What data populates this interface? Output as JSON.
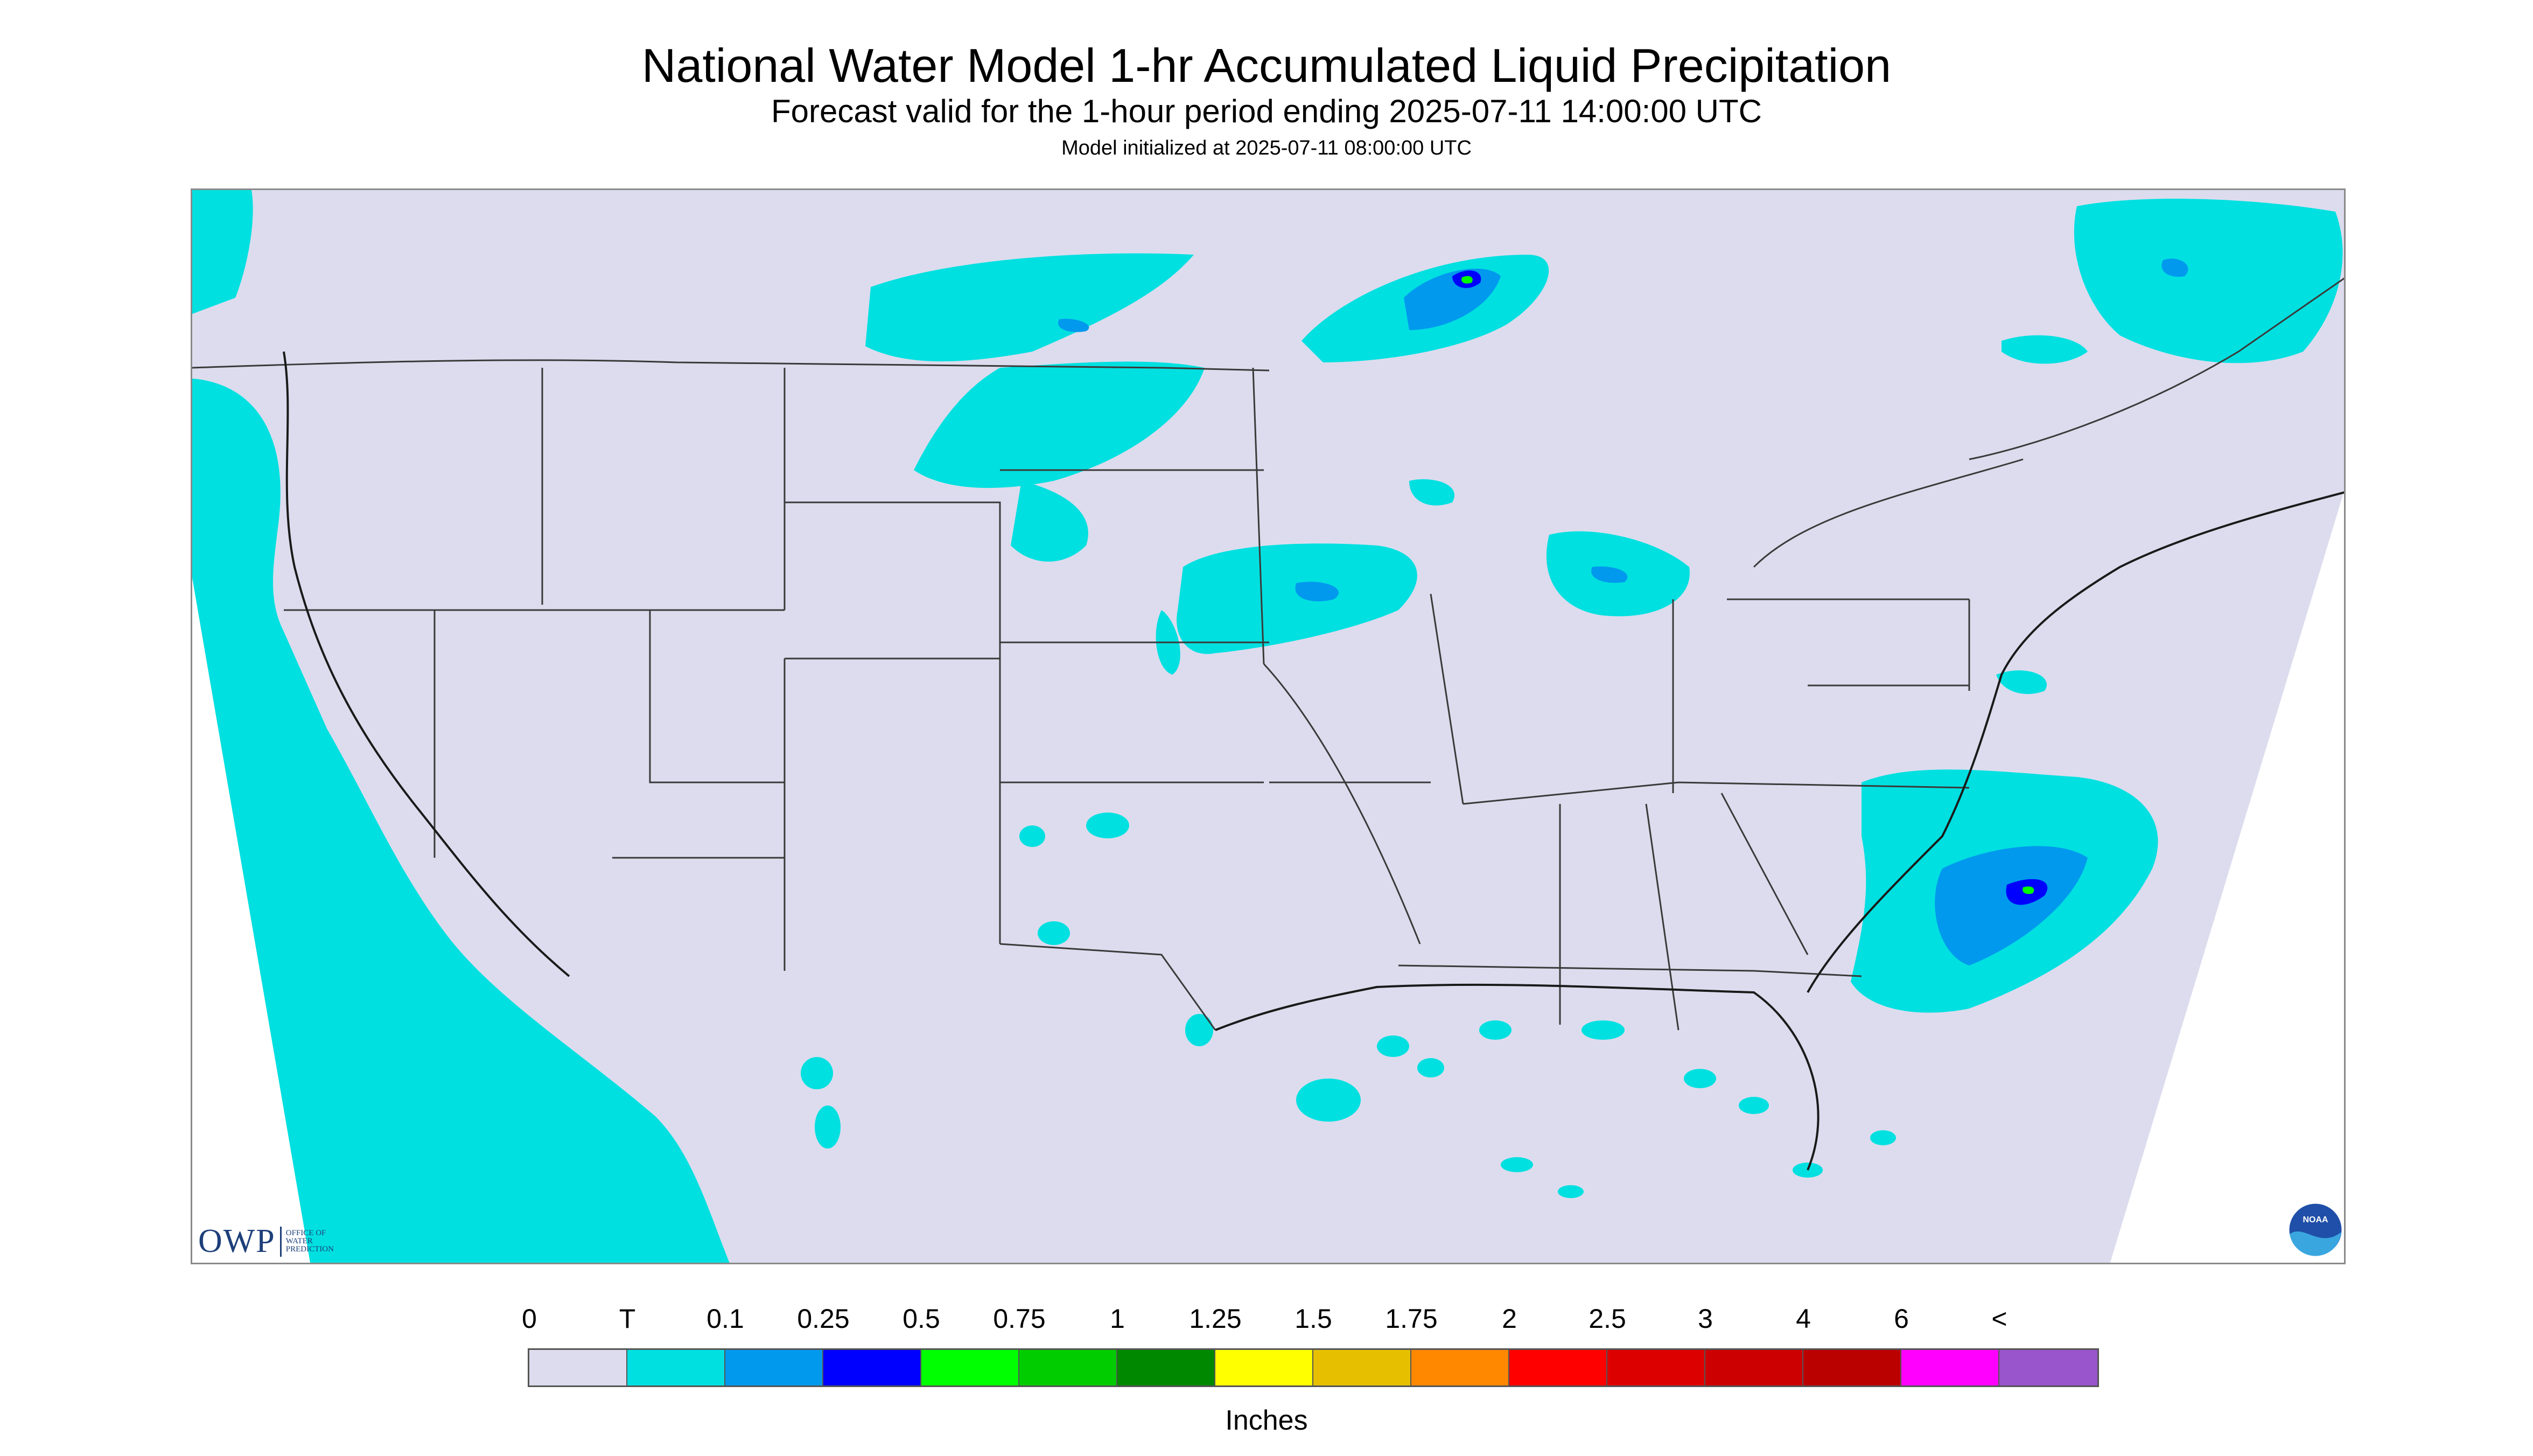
{
  "titles": {
    "main": "National Water Model 1-hr Accumulated Liquid Precipitation",
    "subtitle": "Forecast valid for the 1-hour period ending 2025-07-11 14:00:00 UTC",
    "initialized": "Model initialized at 2025-07-11 08:00:00 UTC"
  },
  "colors": {
    "background_zero": "#dcdcee",
    "trace": "#00e0e0",
    "light_blue": "#0099ee",
    "blue": "#0000ff",
    "green": "#00ff00",
    "offscreen": "#ffffff",
    "border_lines": "#3a3a3a"
  },
  "logos": {
    "owp_text": "OWP",
    "owp_subtext": [
      "OFFICE OF",
      "WATER",
      "PREDICTION"
    ],
    "noaa_text": "NOAA"
  },
  "legend": {
    "units": "Inches",
    "labels": [
      "0",
      "T",
      "0.1",
      "0.25",
      "0.5",
      "0.75",
      "1",
      "1.25",
      "1.5",
      "1.75",
      "2",
      "2.5",
      "3",
      "4",
      "6",
      "<"
    ],
    "colors": [
      "#dcdcee",
      "#00e0e0",
      "#0099ee",
      "#0000ff",
      "#00ff00",
      "#00cc00",
      "#008800",
      "#ffff00",
      "#e6c000",
      "#ff8800",
      "#ff0000",
      "#dd0000",
      "#cc0000",
      "#bb0000",
      "#ff00ff",
      "#9955cc"
    ]
  }
}
